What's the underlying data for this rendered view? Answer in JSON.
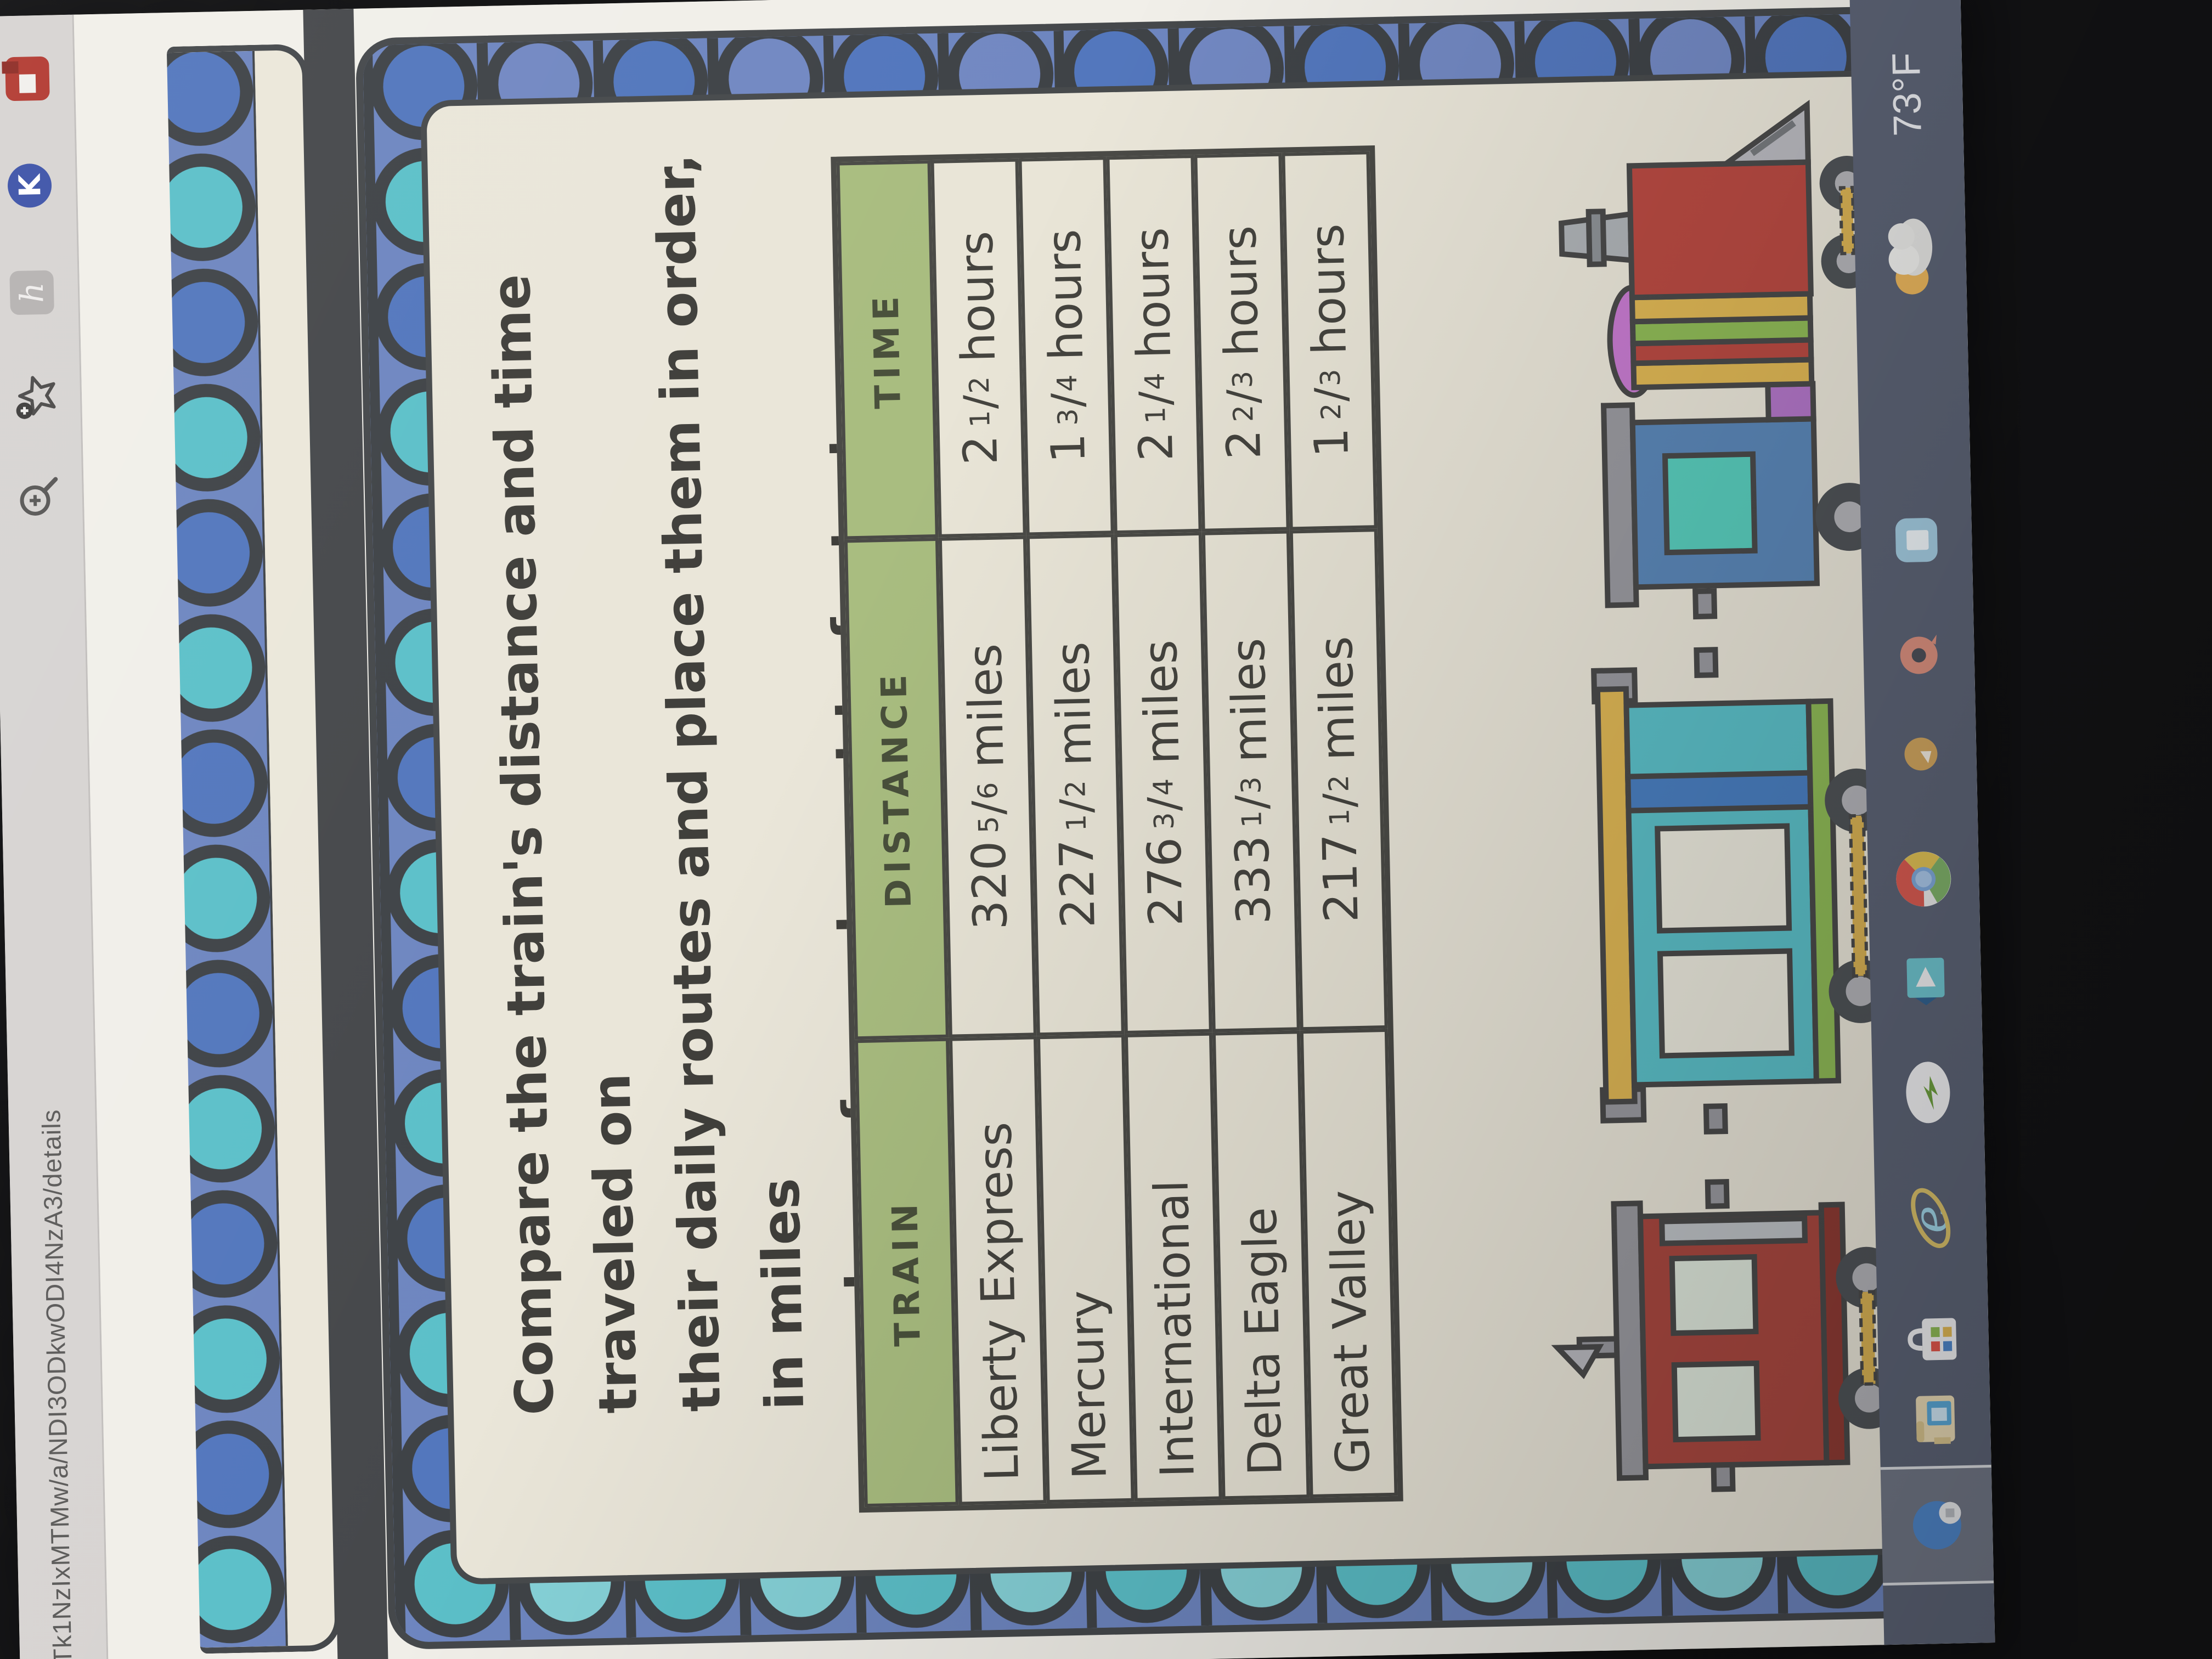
{
  "browser": {
    "url_visible": "Tk1NzIxMTMw/a/NDI3ODkwODI4NzA3/details",
    "toolbar_icons": [
      "zoom-in-icon",
      "bookmark-star-add-icon",
      "h-extension-icon",
      "k-extension-icon",
      "red-extension-icon"
    ],
    "extension_k_letter": "K",
    "extension_h_letter": "h"
  },
  "worksheet": {
    "title_lines": [
      "Compare the train's distance and time traveled on",
      "their daily routes and place them in order, in miles",
      "per hour, from slowest to fastest."
    ],
    "table": {
      "headers": [
        "TRAIN",
        "DISTANCE",
        "TIME"
      ],
      "rows": [
        {
          "train": "Liberty Express",
          "distance": {
            "whole": "320",
            "num": "5",
            "den": "6",
            "unit": "miles"
          },
          "time": {
            "whole": "2",
            "num": "1",
            "den": "2",
            "unit": "hours"
          }
        },
        {
          "train": "Mercury",
          "distance": {
            "whole": "227",
            "num": "1",
            "den": "2",
            "unit": "miles"
          },
          "time": {
            "whole": "1",
            "num": "3",
            "den": "4",
            "unit": "hours"
          }
        },
        {
          "train": "International",
          "distance": {
            "whole": "276",
            "num": "3",
            "den": "4",
            "unit": "miles"
          },
          "time": {
            "whole": "2",
            "num": "1",
            "den": "4",
            "unit": "hours"
          }
        },
        {
          "train": "Delta Eagle",
          "distance": {
            "whole": "333",
            "num": "1",
            "den": "3",
            "unit": "miles"
          },
          "time": {
            "whole": "2",
            "num": "2",
            "den": "3",
            "unit": "hours"
          }
        },
        {
          "train": "Great Valley",
          "distance": {
            "whole": "217",
            "num": "1",
            "den": "2",
            "unit": "miles"
          },
          "time": {
            "whole": "1",
            "num": "2",
            "den": "3",
            "unit": "hours"
          }
        }
      ]
    },
    "illustrations": [
      "red-caboose-train-car",
      "teal-passenger-train-car",
      "locomotive-engine"
    ]
  },
  "taskbar": {
    "icons": [
      "edge-active-app-icon",
      "file-explorer-icon",
      "microsoft-store-icon",
      "internet-explorer-icon",
      "green-arrow-app-icon",
      "movies-tv-app-icon",
      "chrome-icon",
      "amber-app-icon",
      "pink-app-icon",
      "blue-app-icon"
    ],
    "weather": {
      "temperature": "73°F",
      "icon": "partly-cloudy-icon"
    }
  },
  "colors": {
    "header_green": "#a9bd80",
    "card_cream": "#eae6d9",
    "glass_periwinkle": "#6e86c0",
    "glass_teal": "#5cc0c9",
    "glass_blue": "#5377bd",
    "leadline_dark": "#45484b",
    "taskbar_gray": "#5c6375",
    "toolbar_gray": "#d7d4d2"
  }
}
